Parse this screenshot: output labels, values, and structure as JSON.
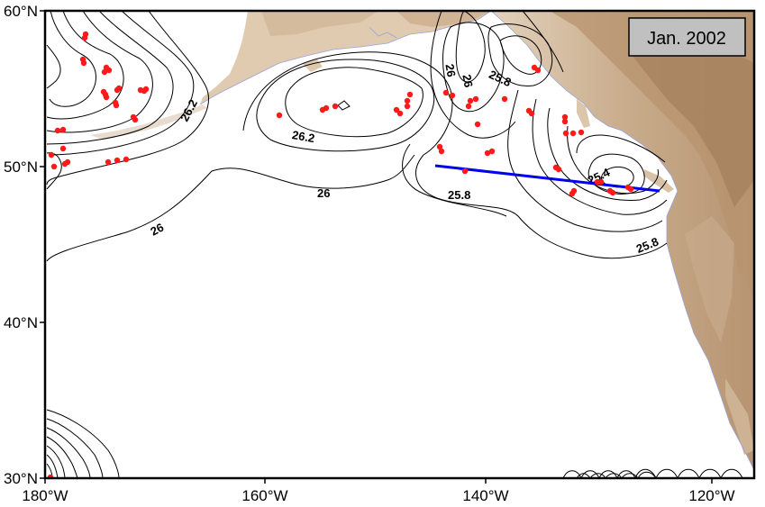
{
  "date_label": "Jan. 2002",
  "axes": {
    "lat_ticks": [
      "60°N",
      "50°N",
      "40°N",
      "30°N"
    ],
    "lon_ticks": [
      "180°W",
      "160°W",
      "140°W",
      "120°W"
    ]
  },
  "contour_labels": [
    "26.2",
    "26",
    "26",
    "26.2",
    "26",
    "26",
    "25.8",
    "25.8",
    "25.8",
    "25.4",
    "25.8"
  ],
  "colors": {
    "contour": "#000000",
    "stations": "#ff1a1a",
    "transect": "#0000ee",
    "land_light": "#e6d6c2",
    "land_mid": "#cfb598",
    "land_dark": "#a98463",
    "coastline": "#9aa4d8"
  },
  "features": {
    "stations": "red station dots",
    "transect": "blue section line",
    "land": "shaded relief of North America and Alaska"
  }
}
